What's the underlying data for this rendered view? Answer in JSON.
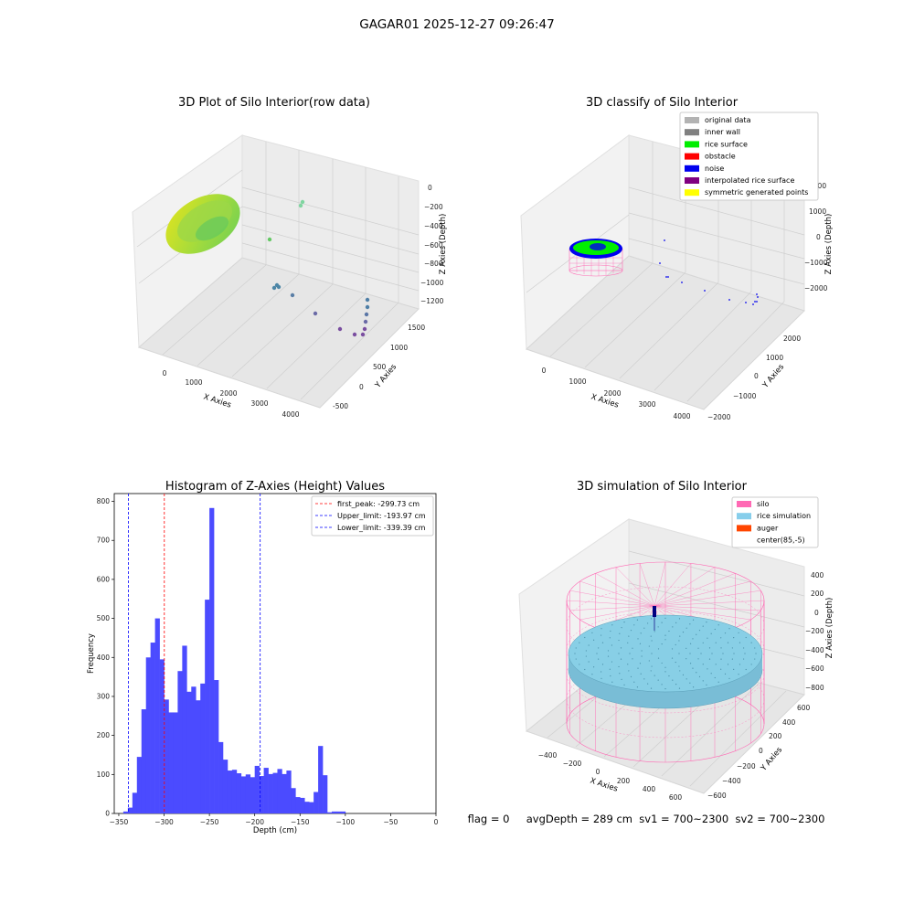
{
  "figure": {
    "suptitle": "GAGAR01 2025-12-27 09:26:47",
    "footer": "flag = 0     avgDepth = 289 cm  sv1 = 700~2300  sv2 = 700~2300"
  },
  "chart_data": [
    {
      "type": "scatter",
      "title": "3D Plot of Silo Interior(row data)",
      "xlabel": "X Axies",
      "ylabel": "Y Axies",
      "zlabel": "Z Axies (Depth)",
      "xticks": [
        "0",
        "1000",
        "2000",
        "3000",
        "4000"
      ],
      "yticks": [
        "-500",
        "0",
        "500",
        "1000",
        "1500"
      ],
      "zticks": [
        "0",
        "−200",
        "−400",
        "−600",
        "−800",
        "−1000",
        "−1200"
      ],
      "colormap": "viridis"
    },
    {
      "type": "scatter",
      "title": "3D classify of Silo Interior",
      "xlabel": "X Axies",
      "ylabel": "Y Axies",
      "zlabel": "Z Axies (Depth)",
      "xticks": [
        "0",
        "1000",
        "2000",
        "3000",
        "4000"
      ],
      "yticks": [
        "−2000",
        "−1000",
        "0",
        "1000",
        "2000"
      ],
      "zticks": [
        "2000",
        "1000",
        "0",
        "−1000",
        "−2000"
      ],
      "legend": [
        {
          "label": "original data",
          "color": "#b3b3b3"
        },
        {
          "label": "inner wall",
          "color": "#808080"
        },
        {
          "label": "rice surface",
          "color": "#00ee00"
        },
        {
          "label": "obstacle",
          "color": "#ff0000"
        },
        {
          "label": "noise",
          "color": "#0000ee"
        },
        {
          "label": "interpolated rice surface",
          "color": "#800080"
        },
        {
          "label": "symmetric generated points",
          "color": "#ffff00"
        }
      ],
      "legend_loc": "upper right"
    },
    {
      "type": "bar",
      "title": "Histogram of Z-Axies (Height) Values",
      "xlabel": "Depth (cm)",
      "ylabel": "Frequency",
      "xlim": [
        -355,
        0
      ],
      "ylim": [
        0,
        820
      ],
      "bin_width": 5,
      "bar_color": "#4b4bff",
      "xticks": [
        -350,
        -300,
        -250,
        -200,
        -150,
        -100,
        -50,
        0
      ],
      "xticklabels": [
        "−350",
        "−300",
        "−250",
        "−200",
        "−150",
        "−100",
        "−50",
        "0"
      ],
      "yticks": [
        0,
        100,
        200,
        300,
        400,
        500,
        600,
        700,
        800
      ],
      "bins": [
        {
          "x": -345,
          "v": 5
        },
        {
          "x": -340,
          "v": 15
        },
        {
          "x": -335,
          "v": 53
        },
        {
          "x": -330,
          "v": 145
        },
        {
          "x": -325,
          "v": 267
        },
        {
          "x": -320,
          "v": 400
        },
        {
          "x": -315,
          "v": 438
        },
        {
          "x": -310,
          "v": 500
        },
        {
          "x": -305,
          "v": 395
        },
        {
          "x": -300,
          "v": 292
        },
        {
          "x": -295,
          "v": 259
        },
        {
          "x": -290,
          "v": 259
        },
        {
          "x": -285,
          "v": 365
        },
        {
          "x": -280,
          "v": 430
        },
        {
          "x": -275,
          "v": 312
        },
        {
          "x": -270,
          "v": 325
        },
        {
          "x": -265,
          "v": 290
        },
        {
          "x": -260,
          "v": 333
        },
        {
          "x": -255,
          "v": 548
        },
        {
          "x": -250,
          "v": 783
        },
        {
          "x": -245,
          "v": 342
        },
        {
          "x": -240,
          "v": 183
        },
        {
          "x": -235,
          "v": 138
        },
        {
          "x": -230,
          "v": 110
        },
        {
          "x": -225,
          "v": 112
        },
        {
          "x": -220,
          "v": 103
        },
        {
          "x": -215,
          "v": 95
        },
        {
          "x": -210,
          "v": 100
        },
        {
          "x": -205,
          "v": 93
        },
        {
          "x": -200,
          "v": 122
        },
        {
          "x": -195,
          "v": 96
        },
        {
          "x": -190,
          "v": 117
        },
        {
          "x": -185,
          "v": 101
        },
        {
          "x": -180,
          "v": 104
        },
        {
          "x": -175,
          "v": 114
        },
        {
          "x": -170,
          "v": 101
        },
        {
          "x": -165,
          "v": 110
        },
        {
          "x": -160,
          "v": 65
        },
        {
          "x": -155,
          "v": 42
        },
        {
          "x": -150,
          "v": 40
        },
        {
          "x": -145,
          "v": 30
        },
        {
          "x": -140,
          "v": 29
        },
        {
          "x": -135,
          "v": 55
        },
        {
          "x": -130,
          "v": 173
        },
        {
          "x": -125,
          "v": 98
        },
        {
          "x": -120,
          "v": 3
        },
        {
          "x": -115,
          "v": 5
        },
        {
          "x": -110,
          "v": 5
        },
        {
          "x": -105,
          "v": 5
        }
      ],
      "vlines": [
        {
          "label": "first_peak: -299.73 cm",
          "x": -299.73,
          "color": "#ff0000"
        },
        {
          "label": "Upper_limit: -193.97 cm",
          "x": -193.97,
          "color": "#0000ff"
        },
        {
          "label": "Lower_limit: -339.39 cm",
          "x": -339.39,
          "color": "#0000ff"
        }
      ],
      "legend_loc": "upper right"
    },
    {
      "type": "scatter",
      "title": "3D simulation of Silo Interior",
      "xlabel": "X Axies",
      "ylabel": "Y Axies",
      "zlabel": "Z Axies (Depth)",
      "xticks": [
        "−400",
        "−200",
        "0",
        "200",
        "400",
        "600"
      ],
      "yticks": [
        "−600",
        "−400",
        "−200",
        "0",
        "200",
        "400",
        "600"
      ],
      "zticks": [
        "400",
        "200",
        "0",
        "−200",
        "−400",
        "−600",
        "−800"
      ],
      "legend": [
        {
          "label": "silo",
          "color": "#ff69b4"
        },
        {
          "label": "rice simulation",
          "color": "#87ceeb"
        },
        {
          "label": "auger",
          "color": "#ff4500"
        },
        {
          "label": "center(85,-5)",
          "color": "none"
        }
      ],
      "legend_loc": "upper right"
    }
  ]
}
